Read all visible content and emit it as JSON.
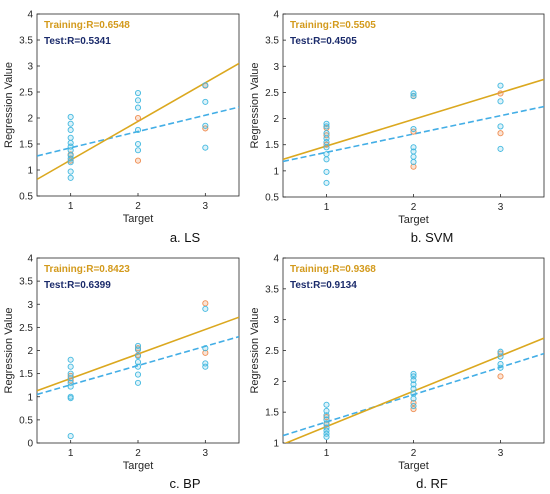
{
  "colors": {
    "training": "#dba81f",
    "test": "#43aee6",
    "training_label": "#d39a1c",
    "test_label": "#1b2b6b",
    "point_blue": "#44b9e0",
    "point_orange": "#ef8f54"
  },
  "chart_data": [
    {
      "type": "scatter",
      "id": "a",
      "caption": "a. LS",
      "xlabel": "Target",
      "ylabel": "Regression Value",
      "xlim": [
        0.5,
        3.5
      ],
      "ylim": [
        0.5,
        4
      ],
      "xticks": [
        1,
        2,
        3
      ],
      "yticks": [
        0.5,
        1,
        1.5,
        2,
        2.5,
        3,
        3.5,
        4
      ],
      "annotations": {
        "training": "Training:R=0.6548",
        "test": "Test:R=0.5341"
      },
      "fit_lines": {
        "training": [
          [
            0.5,
            0.82
          ],
          [
            3.5,
            3.05
          ]
        ],
        "test": [
          [
            0.5,
            1.27
          ],
          [
            3.5,
            2.21
          ]
        ]
      },
      "points_blue": [
        [
          1,
          0.85
        ],
        [
          1,
          0.97
        ],
        [
          1,
          1.15
        ],
        [
          1,
          1.22
        ],
        [
          1,
          1.28
        ],
        [
          1,
          1.38
        ],
        [
          1,
          1.45
        ],
        [
          1,
          1.52
        ],
        [
          1,
          1.62
        ],
        [
          1,
          1.77
        ],
        [
          1,
          1.89
        ],
        [
          1,
          2.02
        ],
        [
          2,
          1.38
        ],
        [
          2,
          1.5
        ],
        [
          2,
          1.77
        ],
        [
          2,
          2.2
        ],
        [
          2,
          2.34
        ],
        [
          2,
          2.48
        ],
        [
          3,
          1.43
        ],
        [
          3,
          1.85
        ],
        [
          3,
          2.31
        ],
        [
          3,
          2.63
        ]
      ],
      "points_orange": [
        [
          1,
          1.18
        ],
        [
          1,
          1.3
        ],
        [
          2,
          1.18
        ],
        [
          2,
          2.0
        ],
        [
          3,
          1.8
        ],
        [
          3,
          2.62
        ]
      ]
    },
    {
      "type": "scatter",
      "id": "b",
      "caption": "b. SVM",
      "xlabel": "Target",
      "ylabel": "Regression Value",
      "xlim": [
        0.5,
        3.5
      ],
      "ylim": [
        0.5,
        4
      ],
      "xticks": [
        1,
        2,
        3
      ],
      "yticks": [
        0.5,
        1,
        1.5,
        2,
        2.5,
        3,
        3.5,
        4
      ],
      "annotations": {
        "training": "Training:R=0.5505",
        "test": "Test:R=0.4505"
      },
      "fit_lines": {
        "training": [
          [
            0.5,
            1.22
          ],
          [
            3.5,
            2.75
          ]
        ],
        "test": [
          [
            0.5,
            1.18
          ],
          [
            3.5,
            2.23
          ]
        ]
      },
      "points_blue": [
        [
          1,
          0.77
        ],
        [
          1,
          0.98
        ],
        [
          1,
          1.22
        ],
        [
          1,
          1.32
        ],
        [
          1,
          1.45
        ],
        [
          1,
          1.55
        ],
        [
          1,
          1.62
        ],
        [
          1,
          1.72
        ],
        [
          1,
          1.85
        ],
        [
          1,
          1.9
        ],
        [
          2,
          1.17
        ],
        [
          2,
          1.27
        ],
        [
          2,
          1.37
        ],
        [
          2,
          1.45
        ],
        [
          2,
          1.8
        ],
        [
          2,
          2.43
        ],
        [
          2,
          2.48
        ],
        [
          3,
          1.42
        ],
        [
          3,
          1.85
        ],
        [
          3,
          2.33
        ],
        [
          3,
          2.63
        ]
      ],
      "points_orange": [
        [
          1,
          1.5
        ],
        [
          1,
          1.68
        ],
        [
          1,
          1.82
        ],
        [
          2,
          1.08
        ],
        [
          2,
          1.75
        ],
        [
          2,
          2.43
        ],
        [
          3,
          1.72
        ],
        [
          3,
          2.48
        ]
      ]
    },
    {
      "type": "scatter",
      "id": "c",
      "caption": "c. BP",
      "xlabel": "Target",
      "ylabel": "Regression Value",
      "xlim": [
        0.5,
        3.5
      ],
      "ylim": [
        0,
        4
      ],
      "xticks": [
        1,
        2,
        3
      ],
      "yticks": [
        0,
        0.5,
        1,
        1.5,
        2,
        2.5,
        3,
        3.5,
        4
      ],
      "annotations": {
        "training": "Training:R=0.8423",
        "test": "Test:R=0.6399"
      },
      "fit_lines": {
        "training": [
          [
            0.5,
            1.13
          ],
          [
            3.5,
            2.72
          ]
        ],
        "test": [
          [
            0.5,
            1.05
          ],
          [
            3.5,
            2.3
          ]
        ]
      },
      "points_blue": [
        [
          1,
          0.15
        ],
        [
          1,
          0.97
        ],
        [
          1,
          1.0
        ],
        [
          1,
          1.22
        ],
        [
          1,
          1.3
        ],
        [
          1,
          1.4
        ],
        [
          1,
          1.5
        ],
        [
          1,
          1.65
        ],
        [
          1,
          1.8
        ],
        [
          2,
          1.3
        ],
        [
          2,
          1.48
        ],
        [
          2,
          1.65
        ],
        [
          2,
          1.75
        ],
        [
          2,
          1.88
        ],
        [
          2,
          2.02
        ],
        [
          2,
          2.1
        ],
        [
          3,
          1.65
        ],
        [
          3,
          1.72
        ],
        [
          3,
          2.05
        ],
        [
          3,
          2.9
        ]
      ],
      "points_orange": [
        [
          1,
          1.35
        ],
        [
          1,
          1.45
        ],
        [
          2,
          1.9
        ],
        [
          2,
          2.05
        ],
        [
          3,
          1.95
        ],
        [
          3,
          3.02
        ]
      ]
    },
    {
      "type": "scatter",
      "id": "d",
      "caption": "d. RF",
      "xlabel": "Target",
      "ylabel": "Regression Value",
      "xlim": [
        0.5,
        3.5
      ],
      "ylim": [
        1,
        4
      ],
      "xticks": [
        1,
        2,
        3
      ],
      "yticks": [
        1,
        1.5,
        2,
        2.5,
        3,
        3.5,
        4
      ],
      "annotations": {
        "training": "Training:R=0.9368",
        "test": "Test:R=0.9134"
      },
      "fit_lines": {
        "training": [
          [
            0.5,
            0.98
          ],
          [
            3.5,
            2.7
          ]
        ],
        "test": [
          [
            0.5,
            1.12
          ],
          [
            3.5,
            2.45
          ]
        ]
      },
      "points_blue": [
        [
          1,
          1.1
        ],
        [
          1,
          1.15
        ],
        [
          1,
          1.2
        ],
        [
          1,
          1.25
        ],
        [
          1,
          1.32
        ],
        [
          1,
          1.38
        ],
        [
          1,
          1.45
        ],
        [
          1,
          1.52
        ],
        [
          1,
          1.62
        ],
        [
          2,
          1.6
        ],
        [
          2,
          1.72
        ],
        [
          2,
          1.8
        ],
        [
          2,
          1.88
        ],
        [
          2,
          1.95
        ],
        [
          2,
          2.02
        ],
        [
          2,
          2.08
        ],
        [
          2,
          2.12
        ],
        [
          3,
          2.22
        ],
        [
          3,
          2.28
        ],
        [
          3,
          2.4
        ],
        [
          3,
          2.48
        ]
      ],
      "points_orange": [
        [
          1,
          1.3
        ],
        [
          1,
          1.42
        ],
        [
          2,
          1.55
        ],
        [
          2,
          1.65
        ],
        [
          3,
          2.08
        ],
        [
          3,
          2.45
        ]
      ]
    }
  ]
}
